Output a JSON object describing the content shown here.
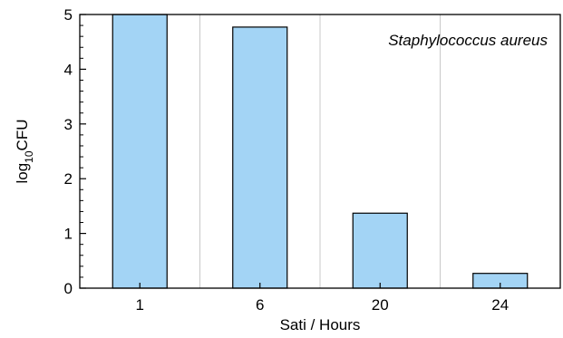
{
  "chart_data": {
    "type": "bar",
    "categories": [
      "1",
      "6",
      "20",
      "24"
    ],
    "values": [
      5.0,
      4.77,
      1.37,
      0.27
    ],
    "xlabel": "Sati / Hours",
    "ylabel_base": "log",
    "ylabel_sub": "10",
    "ylabel_rest": "CFU",
    "ylim": [
      0,
      5
    ],
    "yticks": [
      "0",
      "1",
      "2",
      "3",
      "4",
      "5"
    ],
    "annotation": "Staphylococcus aureus",
    "grid": "vertical between categories",
    "bar_color": "#a3d4f5",
    "bar_edge": "#000000",
    "grid_color": "#c8c8c8"
  }
}
